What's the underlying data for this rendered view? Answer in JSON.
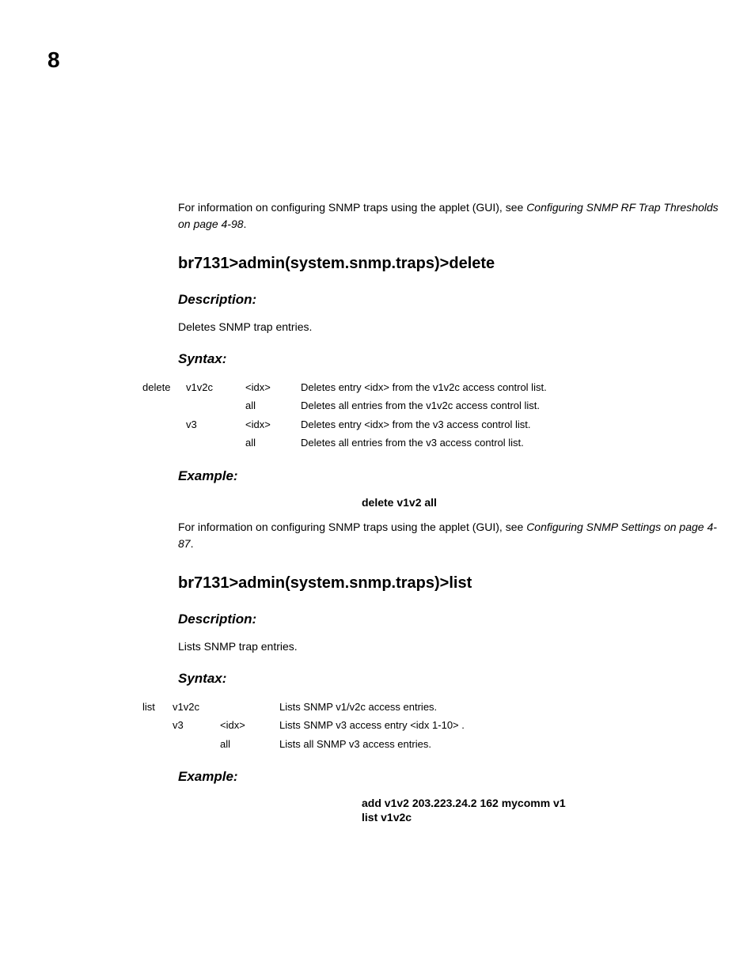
{
  "chapter": "8",
  "intro": {
    "prefix": "For information on configuring SNMP traps using the applet (GUI), see ",
    "link": "Configuring SNMP RF Trap Thresholds on page 4-98",
    "suffix": "."
  },
  "section1": {
    "heading": "br7131>admin(system.snmp.traps)>delete",
    "desc_label": "Description:",
    "desc_text": "Deletes SNMP trap entries.",
    "syntax_label": "Syntax:",
    "syntax_rows": [
      {
        "cmd": "delete",
        "ver": "v1v2c",
        "arg": "<idx>",
        "desc": "Deletes entry <idx> from the v1v2c access control list."
      },
      {
        "cmd": "",
        "ver": "",
        "arg": "all",
        "desc": "Deletes all entries from the v1v2c access control list."
      },
      {
        "cmd": "",
        "ver": "v3",
        "arg": "<idx>",
        "desc": "Deletes entry <idx> from the v3 access control list."
      },
      {
        "cmd": "",
        "ver": "",
        "arg": "all",
        "desc": "Deletes all entries from the v3 access control list."
      }
    ],
    "example_label": "Example:",
    "example_text": "delete v1v2 all",
    "footer": {
      "prefix": "For information on configuring SNMP traps using the applet (GUI), see ",
      "link": "Configuring SNMP Settings on page 4-87",
      "suffix": "."
    }
  },
  "section2": {
    "heading": "br7131>admin(system.snmp.traps)>list",
    "desc_label": "Description:",
    "desc_text": "Lists SNMP trap entries.",
    "syntax_label": "Syntax:",
    "syntax_rows": [
      {
        "cmd": "list",
        "ver": "v1v2c",
        "arg": "",
        "desc": "Lists SNMP v1/v2c access entries."
      },
      {
        "cmd": "",
        "ver": "v3",
        "arg": "<idx>",
        "desc": "Lists SNMP v3 access entry <idx 1-10> ."
      },
      {
        "cmd": "",
        "ver": "",
        "arg": "all",
        "desc": "Lists all SNMP v3 access entries."
      }
    ],
    "example_label": "Example:",
    "example_text": "add v1v2 203.223.24.2 162 mycomm v1\nlist v1v2c"
  }
}
